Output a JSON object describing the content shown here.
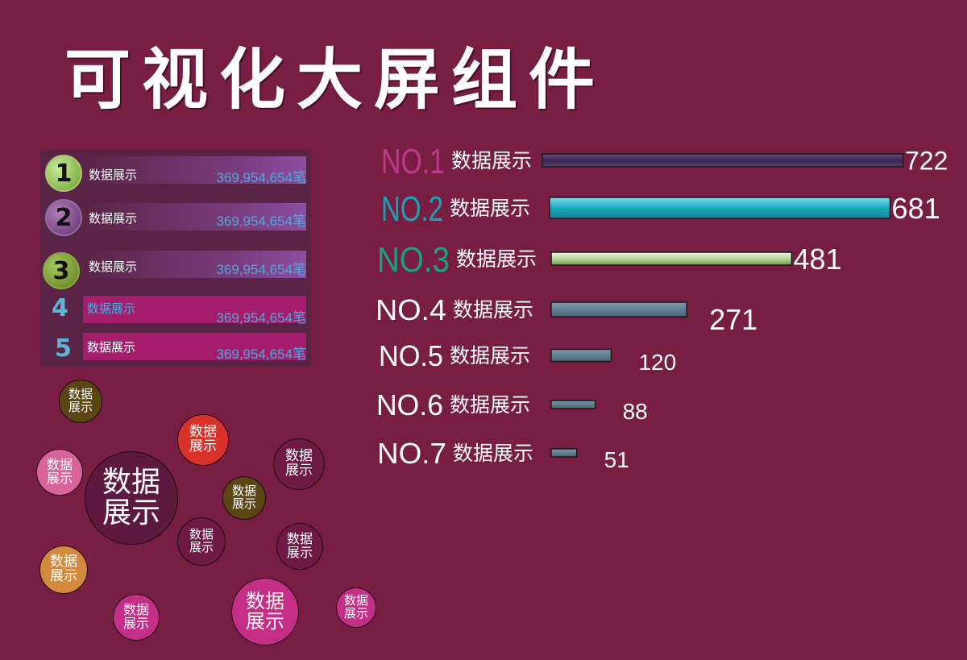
{
  "title": "可视化大屏组件",
  "ranking": [
    {
      "rank": "1",
      "label": "数据展示",
      "value": "369,954,654笔"
    },
    {
      "rank": "2",
      "label": "数据展示",
      "value": "369,954,654笔"
    },
    {
      "rank": "3",
      "label": "数据展示",
      "value": "369,954,654笔"
    },
    {
      "rank": "4",
      "label": "数据展示",
      "value": "369,954,654笔"
    },
    {
      "rank": "5",
      "label": "数据展示",
      "value": "369,954,654笔"
    }
  ],
  "bubbles": [
    {
      "text": "数据展示",
      "color": "#5a4514"
    },
    {
      "text": "数据展示",
      "color": "#d9322b"
    },
    {
      "text": "数据展示",
      "color": "#6e1a45"
    },
    {
      "text": "数据展示",
      "color": "#d9649c"
    },
    {
      "text": "数据展示",
      "color": "#5e1a3e"
    },
    {
      "text": "数据展示",
      "color": "#5a4514"
    },
    {
      "text": "数据展示",
      "color": "#6e1a45"
    },
    {
      "text": "数据展示",
      "color": "#6e1a45"
    },
    {
      "text": "数据展示",
      "color": "#d48a3c"
    },
    {
      "text": "数据展示",
      "color": "#c42e86"
    },
    {
      "text": "数据展示",
      "color": "#c42e86"
    },
    {
      "text": "数据展示",
      "color": "#c42e86"
    }
  ],
  "chart_data": {
    "type": "bar",
    "orientation": "horizontal",
    "categories": [
      "NO.1",
      "NO.2",
      "NO.3",
      "NO.4",
      "NO.5",
      "NO.6",
      "NO.7"
    ],
    "category_suffix": "数据展示",
    "values": [
      722,
      681,
      481,
      271,
      120,
      88,
      51
    ],
    "rank_label_colors": [
      "#b93a8a",
      "#1aa3b4",
      "#1aa37a",
      "#ffffff",
      "#ffffff",
      "#ffffff",
      "#ffffff"
    ],
    "bar_colors": [
      "#4a3560",
      "#22b4c8",
      "#b8d49a",
      "#5f7b8e",
      "#5f7b8e",
      "#5f7b8e",
      "#5f7b8e"
    ],
    "title": "",
    "xlabel": "",
    "ylabel": ""
  }
}
